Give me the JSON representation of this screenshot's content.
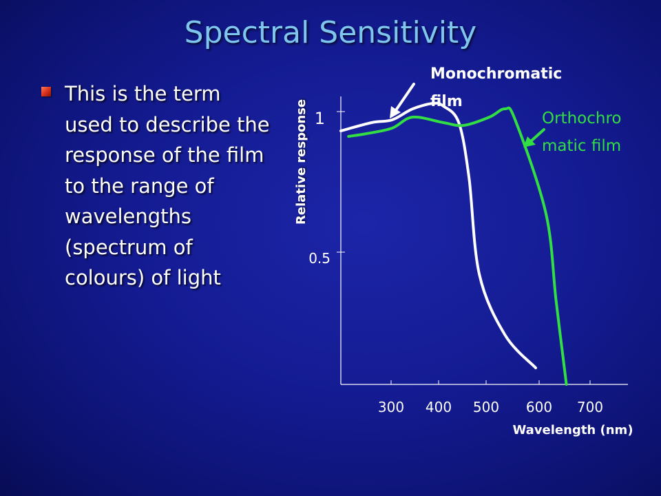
{
  "slide": {
    "title": "Spectral Sensitivity",
    "bullet_text": "This is the term used to describe the response of the film to the range of wavelengths (spectrum of colours) of light"
  },
  "colors": {
    "background": "#141b92",
    "title": "#7fc6ee",
    "monochromatic_curve": "#ffffff",
    "orthochromatic_curve": "#33dd44",
    "bullet": "#d8301a"
  },
  "chart_data": {
    "type": "line",
    "xlabel": "Wavelength (nm)",
    "ylabel": "Relative response",
    "x_ticks": [
      "300",
      "400",
      "500",
      "600",
      "700"
    ],
    "y_ticks": [
      "0.5",
      "1"
    ],
    "xlim": [
      200,
      760
    ],
    "ylim": [
      0,
      1.08
    ],
    "grid": false,
    "series": [
      {
        "name": "Monochromatic film",
        "color": "#ffffff",
        "x": [
          200,
          260,
          300,
          340,
          380,
          400,
          430,
          450,
          470,
          520,
          580
        ],
        "y": [
          0.92,
          0.95,
          0.96,
          1.0,
          1.02,
          1.01,
          0.95,
          0.75,
          0.4,
          0.18,
          0.06
        ]
      },
      {
        "name": "Orthochromatic film",
        "color": "#33dd44",
        "x": [
          215,
          250,
          300,
          340,
          400,
          440,
          490,
          520,
          540,
          600,
          620,
          640
        ],
        "y": [
          0.9,
          0.91,
          0.93,
          0.97,
          0.95,
          0.94,
          0.97,
          1.0,
          0.96,
          0.62,
          0.3,
          0.0
        ]
      }
    ],
    "annotations": [
      {
        "text": "Monochromatic film",
        "lines": [
          "Monochromatic",
          "film"
        ],
        "points_to": "Monochromatic film"
      },
      {
        "text": "Orthochromatic film",
        "lines": [
          "Orthochro",
          "matic film"
        ],
        "points_to": "Orthochromatic film"
      }
    ]
  }
}
